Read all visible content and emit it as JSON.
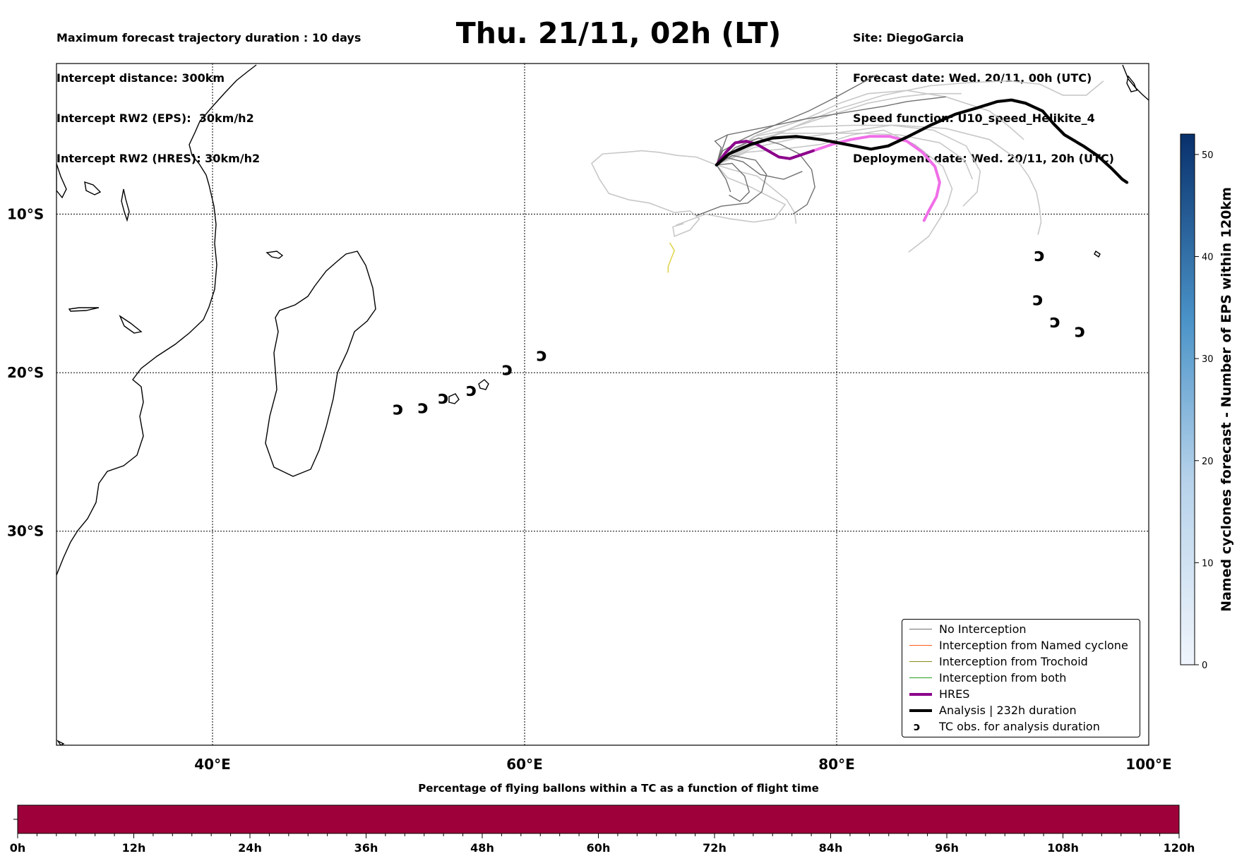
{
  "header": {
    "left_lines": [
      "Maximum forecast trajectory duration : 10 days",
      "Intercept distance: 300km",
      "Intercept RW2 (EPS):  30km/h2",
      "Intercept RW2 (HRES): 30km/h2"
    ],
    "title": "Thu. 21/11, 02h (LT)",
    "right_lines": [
      "Site: DiegoGarcia",
      "Forecast date: Wed. 20/11, 00h (UTC)",
      "Speed function: U10_speed_Helikite_4",
      "Deployment date: Wed. 20/11, 20h (UTC)"
    ]
  },
  "map": {
    "lon_range": [
      30,
      100
    ],
    "lat_range": [
      -43.5,
      -0.5
    ],
    "lon_labels": [
      "40°E",
      "60°E",
      "80°E",
      "100°E"
    ],
    "lat_labels": [
      "10°S",
      "20°S",
      "30°S"
    ],
    "gridlines": true
  },
  "colorbar_right": {
    "label": "Named cyclones forecast - Number of EPS within 120km",
    "ticks": [
      "0",
      "10",
      "20",
      "30",
      "40",
      "50"
    ],
    "range": [
      0,
      52
    ],
    "color_low": "#f0f5fc",
    "color_high": "#08306b"
  },
  "colorbar_bottom": {
    "title": "Percentage of flying ballons within a TC as a function of flight time",
    "ticks": [
      "0h",
      "12h",
      "24h",
      "36h",
      "48h",
      "60h",
      "72h",
      "84h",
      "96h",
      "108h",
      "120h"
    ],
    "fill_color": "#9e003a"
  },
  "legend": [
    {
      "label": "No Interception",
      "color": "#707070",
      "width": 1.5,
      "kind": "line"
    },
    {
      "label": "Interception from Named cyclone",
      "color": "#ff5a1e",
      "width": 1.5,
      "kind": "line"
    },
    {
      "label": "Interception from Trochoid",
      "color": "#8a8a1a",
      "width": 1.5,
      "kind": "line"
    },
    {
      "label": "Interception from both",
      "color": "#22a022",
      "width": 1.5,
      "kind": "line"
    },
    {
      "label": "HRES",
      "color": "#8b008b",
      "width": 4,
      "kind": "line"
    },
    {
      "label": "Analysis | 232h duration",
      "color": "#000000",
      "width": 4,
      "kind": "line"
    },
    {
      "label": "TC obs. for analysis duration",
      "symbol": "ↄ",
      "kind": "symbol"
    }
  ],
  "tc_symbol": "ↄ",
  "tc_obs": [
    [
      51.9,
      -22.3
    ],
    [
      53.5,
      -22.2
    ],
    [
      54.8,
      -21.6
    ],
    [
      56.6,
      -21.1
    ],
    [
      58.9,
      -19.8
    ],
    [
      61.1,
      -18.9
    ],
    [
      93.0,
      -12.6
    ],
    [
      92.9,
      -15.4
    ],
    [
      94.0,
      -16.8
    ],
    [
      95.6,
      -17.4
    ]
  ],
  "tracks": {
    "analysis": {
      "color": "#000000",
      "points": [
        [
          72.3,
          -6.9
        ],
        [
          73.1,
          -6.2
        ],
        [
          74.5,
          -5.6
        ],
        [
          75.9,
          -5.2
        ],
        [
          77.4,
          -5.1
        ],
        [
          79.0,
          -5.3
        ],
        [
          80.6,
          -5.6
        ],
        [
          82.2,
          -5.9
        ],
        [
          83.3,
          -5.7
        ],
        [
          84.6,
          -5.1
        ],
        [
          86.0,
          -4.4
        ],
        [
          87.6,
          -3.7
        ],
        [
          89.0,
          -3.3
        ],
        [
          90.3,
          -2.9
        ],
        [
          91.2,
          -2.8
        ],
        [
          92.1,
          -3.0
        ],
        [
          93.2,
          -3.5
        ],
        [
          93.9,
          -4.3
        ],
        [
          94.6,
          -5.0
        ],
        [
          95.8,
          -5.7
        ],
        [
          96.7,
          -6.3
        ],
        [
          97.6,
          -7.1
        ],
        [
          98.3,
          -7.8
        ],
        [
          98.6,
          -8.0
        ]
      ]
    },
    "hres": {
      "color": "#8b008b",
      "points": [
        [
          72.3,
          -6.9
        ],
        [
          72.9,
          -6.1
        ],
        [
          73.5,
          -5.5
        ],
        [
          74.2,
          -5.4
        ],
        [
          74.9,
          -5.6
        ],
        [
          75.6,
          -6.0
        ],
        [
          76.3,
          -6.4
        ],
        [
          77.0,
          -6.5
        ],
        [
          77.6,
          -6.3
        ],
        [
          78.5,
          -6.0
        ]
      ]
    },
    "hres_ext": {
      "color": "#f06ee8",
      "points": [
        [
          78.5,
          -6.0
        ],
        [
          79.7,
          -5.6
        ],
        [
          80.9,
          -5.3
        ],
        [
          82.1,
          -5.1
        ],
        [
          83.4,
          -5.1
        ],
        [
          84.5,
          -5.4
        ],
        [
          85.5,
          -6.1
        ],
        [
          86.3,
          -7.0
        ],
        [
          86.6,
          -8.0
        ],
        [
          86.4,
          -8.9
        ],
        [
          85.9,
          -9.8
        ],
        [
          85.6,
          -10.4
        ]
      ]
    },
    "eps_yellow": {
      "color": "#e0d040",
      "points": [
        [
          69.3,
          -11.8
        ],
        [
          69.6,
          -12.3
        ],
        [
          69.4,
          -12.8
        ],
        [
          69.2,
          -13.3
        ],
        [
          69.2,
          -13.7
        ]
      ]
    },
    "eps_dark": [
      [
        [
          72.3,
          -6.9
        ],
        [
          73.5,
          -5.8
        ],
        [
          75.0,
          -5.2
        ],
        [
          76.4,
          -5.6
        ],
        [
          77.6,
          -6.2
        ],
        [
          78.4,
          -7.2
        ],
        [
          78.6,
          -8.3
        ],
        [
          78.1,
          -9.4
        ],
        [
          77.2,
          -10.0
        ]
      ],
      [
        [
          72.3,
          -6.9
        ],
        [
          73.3,
          -6.3
        ],
        [
          74.8,
          -6.6
        ],
        [
          75.5,
          -7.5
        ],
        [
          75.2,
          -8.6
        ],
        [
          74.3,
          -9.3
        ],
        [
          72.6,
          -9.5
        ],
        [
          71.0,
          -10.1
        ]
      ],
      [
        [
          72.3,
          -6.9
        ],
        [
          73.0,
          -5.0
        ],
        [
          75.5,
          -4.5
        ],
        [
          78.0,
          -4.0
        ],
        [
          80.5,
          -3.6
        ],
        [
          83.0,
          -3.2
        ],
        [
          84.5,
          -2.9
        ],
        [
          87.0,
          -2.6
        ]
      ],
      [
        [
          72.3,
          -6.9
        ],
        [
          73.3,
          -5.6
        ],
        [
          74.8,
          -4.9
        ],
        [
          76.5,
          -4.2
        ],
        [
          78.2,
          -3.5
        ],
        [
          79.8,
          -2.7
        ],
        [
          81.1,
          -2.0
        ],
        [
          82.6,
          -1.2
        ]
      ],
      [
        [
          72.3,
          -6.9
        ],
        [
          73.3,
          -6.8
        ],
        [
          74.1,
          -7.6
        ],
        [
          74.4,
          -8.6
        ],
        [
          73.8,
          -9.2
        ],
        [
          73.1,
          -8.8
        ]
      ],
      [
        [
          72.3,
          -6.9
        ],
        [
          72.9,
          -7.8
        ],
        [
          73.2,
          -8.6
        ]
      ],
      [
        [
          72.3,
          -6.9
        ],
        [
          72.7,
          -6.0
        ],
        [
          73.6,
          -5.5
        ]
      ],
      [
        [
          72.3,
          -6.9
        ],
        [
          72.8,
          -6.4
        ],
        [
          74.0,
          -6.7
        ],
        [
          75.1,
          -7.5
        ],
        [
          76.6,
          -7.8
        ],
        [
          77.8,
          -7.3
        ]
      ],
      [
        [
          72.3,
          -6.9
        ],
        [
          72.6,
          -5.8
        ],
        [
          72.2,
          -5.4
        ],
        [
          73.0,
          -5.0
        ]
      ]
    ],
    "eps_light": [
      [
        [
          72.3,
          -6.9
        ],
        [
          71.0,
          -6.4
        ],
        [
          69.8,
          -6.3
        ],
        [
          68.6,
          -6.1
        ],
        [
          67.5,
          -6.0
        ],
        [
          66.4,
          -6.1
        ],
        [
          65.0,
          -6.2
        ],
        [
          64.3,
          -6.8
        ],
        [
          64.8,
          -7.8
        ],
        [
          65.4,
          -8.7
        ],
        [
          66.7,
          -9.1
        ],
        [
          68.0,
          -9.3
        ],
        [
          69.6,
          -9.9
        ],
        [
          70.6,
          -9.8
        ],
        [
          71.2,
          -10.3
        ],
        [
          70.6,
          -11.0
        ],
        [
          69.6,
          -11.4
        ],
        [
          69.5,
          -10.8
        ],
        [
          70.2,
          -10.6
        ]
      ],
      [
        [
          72.3,
          -6.9
        ],
        [
          74.8,
          -5.6
        ],
        [
          77.5,
          -4.4
        ],
        [
          80.0,
          -3.4
        ],
        [
          83.0,
          -2.5
        ],
        [
          86.0,
          -1.9
        ],
        [
          88.5,
          -1.7
        ],
        [
          91.0,
          -1.6
        ],
        [
          93.0,
          -1.8
        ],
        [
          94.5,
          -2.5
        ],
        [
          96.0,
          -2.5
        ],
        [
          97.1,
          -1.6
        ]
      ],
      [
        [
          72.3,
          -6.9
        ],
        [
          74.7,
          -5.5
        ],
        [
          77.3,
          -4.5
        ],
        [
          79.8,
          -3.7
        ],
        [
          82.0,
          -3.0
        ],
        [
          84.2,
          -2.6
        ],
        [
          86.0,
          -2.4
        ],
        [
          88.0,
          -2.4
        ]
      ],
      [
        [
          72.3,
          -6.9
        ],
        [
          74.7,
          -5.1
        ],
        [
          78.0,
          -4.5
        ],
        [
          81.0,
          -4.4
        ],
        [
          84.0,
          -4.4
        ],
        [
          87.0,
          -4.6
        ],
        [
          89.8,
          -5.3
        ],
        [
          91.5,
          -6.5
        ],
        [
          92.3,
          -7.6
        ],
        [
          92.8,
          -8.6
        ],
        [
          93.0,
          -9.6
        ],
        [
          93.1,
          -10.5
        ],
        [
          92.9,
          -11.3
        ]
      ],
      [
        [
          72.3,
          -6.9
        ],
        [
          74.7,
          -5.8
        ],
        [
          77.5,
          -5.2
        ],
        [
          80.6,
          -4.8
        ],
        [
          83.5,
          -4.4
        ],
        [
          86.2,
          -4.7
        ],
        [
          88.3,
          -5.7
        ],
        [
          89.2,
          -7.3
        ],
        [
          89.0,
          -8.6
        ],
        [
          88.1,
          -9.5
        ]
      ],
      [
        [
          72.3,
          -6.9
        ],
        [
          74.2,
          -5.4
        ],
        [
          76.5,
          -4.9
        ],
        [
          79.0,
          -4.9
        ],
        [
          81.6,
          -4.9
        ],
        [
          84.0,
          -5.0
        ],
        [
          86.6,
          -5.5
        ],
        [
          88.2,
          -6.6
        ],
        [
          88.7,
          -7.8
        ]
      ],
      [
        [
          72.3,
          -6.9
        ],
        [
          73.0,
          -7.7
        ],
        [
          74.5,
          -8.3
        ],
        [
          75.9,
          -9.0
        ],
        [
          76.7,
          -9.4
        ],
        [
          76.0,
          -10.3
        ],
        [
          74.7,
          -10.5
        ],
        [
          73.2,
          -10.3
        ],
        [
          71.6,
          -10.0
        ],
        [
          69.7,
          -10.7
        ]
      ],
      [
        [
          72.3,
          -6.9
        ],
        [
          74.2,
          -6.1
        ],
        [
          76.5,
          -5.9
        ],
        [
          79.0,
          -5.6
        ],
        [
          81.0,
          -5.0
        ],
        [
          83.0,
          -4.7
        ],
        [
          85.0,
          -5.6
        ],
        [
          86.8,
          -7.0
        ],
        [
          87.4,
          -8.4
        ],
        [
          87.1,
          -9.4
        ],
        [
          86.6,
          -10.3
        ],
        [
          85.9,
          -11.4
        ],
        [
          85.0,
          -12.1
        ],
        [
          84.6,
          -12.4
        ]
      ],
      [
        [
          72.3,
          -6.9
        ],
        [
          73.3,
          -7.2
        ],
        [
          74.9,
          -7.6
        ],
        [
          75.8,
          -8.3
        ],
        [
          76.8,
          -9.1
        ],
        [
          77.3,
          -9.9
        ],
        [
          77.4,
          -10.6
        ]
      ],
      [
        [
          72.3,
          -6.9
        ],
        [
          74.9,
          -5.0
        ],
        [
          78.0,
          -4.0
        ],
        [
          80.2,
          -3.0
        ],
        [
          82.0,
          -2.4
        ],
        [
          84.5,
          -2.2
        ],
        [
          87.0,
          -2.6
        ],
        [
          89.8,
          -3.5
        ],
        [
          91.2,
          -4.6
        ],
        [
          92.0,
          -5.3
        ]
      ]
    ]
  }
}
